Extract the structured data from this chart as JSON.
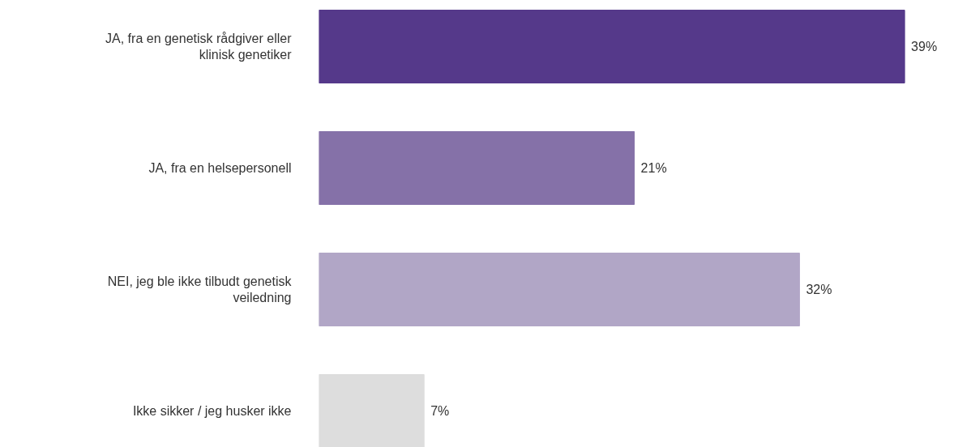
{
  "chart_data": {
    "type": "bar",
    "orientation": "horizontal",
    "categories": [
      "JA, fra en genetisk rådgiver eller klinisk genetiker",
      "JA, fra en helsepersonell",
      "NEI, jeg ble ikke tilbudt genetisk veiledning",
      "Ikke sikker / jeg husker ikke"
    ],
    "values": [
      39,
      21,
      32,
      7
    ],
    "colors": [
      "#55398a",
      "#8571a8",
      "#b1a6c6",
      "#dddddd"
    ],
    "value_labels": [
      "39%",
      "21%",
      "32%",
      "7%"
    ]
  }
}
